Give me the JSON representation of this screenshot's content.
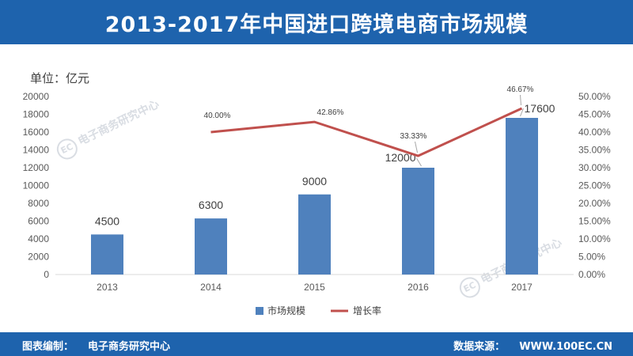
{
  "header": {
    "title": "2013-2017年中国进口跨境电商市场规模"
  },
  "unit_label": "单位：亿元",
  "watermark": {
    "badge": "EC",
    "text": "电子商务研究中心"
  },
  "footer": {
    "left_label": "图表编制：",
    "left_value": "电子商务研究中心",
    "right_label": "数据来源：",
    "right_value": "WWW.100EC.CN"
  },
  "colors": {
    "header_bg": "#1e63ad",
    "bar": "#4f81bd",
    "line": "#c0504d"
  },
  "chart_data": {
    "type": "bar",
    "categories": [
      "2013",
      "2014",
      "2015",
      "2016",
      "2017"
    ],
    "series": [
      {
        "name": "市场规模",
        "type": "bar",
        "axis": "left",
        "values": [
          4500,
          6300,
          9000,
          12000,
          17600
        ],
        "labels": [
          "4500",
          "6300",
          "9000",
          "12000",
          "17600"
        ]
      },
      {
        "name": "增长率",
        "type": "line",
        "axis": "right",
        "x": [
          "2014",
          "2015",
          "2016",
          "2017"
        ],
        "values": [
          40.0,
          42.86,
          33.33,
          46.67
        ],
        "labels": [
          "40.00%",
          "42.86%",
          "33.33%",
          "46.67%"
        ]
      }
    ],
    "ylim_left": [
      0,
      20000
    ],
    "yticks_left": [
      "0",
      "2000",
      "4000",
      "6000",
      "8000",
      "10000",
      "12000",
      "14000",
      "16000",
      "18000",
      "20000"
    ],
    "ylim_right": [
      0,
      50
    ],
    "yticks_right": [
      "0.00%",
      "5.00%",
      "10.00%",
      "15.00%",
      "20.00%",
      "25.00%",
      "30.00%",
      "35.00%",
      "40.00%",
      "45.00%",
      "50.00%"
    ],
    "grid": false,
    "legend_position": "bottom"
  }
}
